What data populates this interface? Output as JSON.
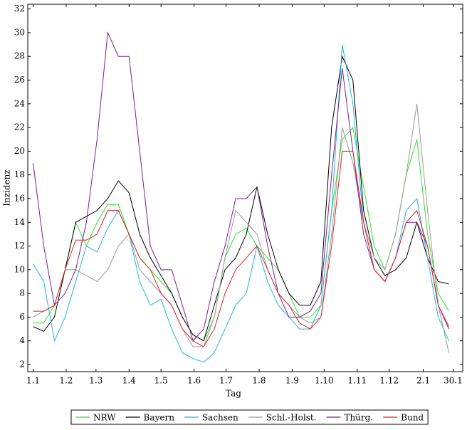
{
  "chart_data": {
    "type": "line",
    "x_label": "Tag",
    "y_label": "Inzidenz",
    "x": [
      0,
      10,
      20,
      30,
      40,
      50,
      60,
      70,
      80,
      90,
      100,
      110,
      120,
      130,
      140,
      150,
      160,
      170,
      180,
      190,
      200,
      210,
      220,
      230,
      240,
      250,
      260,
      270,
      280,
      290,
      300,
      310,
      320,
      330,
      340,
      350,
      360,
      370,
      380,
      390
    ],
    "series": [
      {
        "name": "NRW",
        "color": "#33dd33",
        "values": [
          5.5,
          5.5,
          7,
          10,
          14,
          12,
          14,
          15.5,
          15.5,
          13,
          11,
          10,
          9,
          8,
          6,
          4.5,
          4,
          6,
          11,
          13,
          13.5,
          12,
          11,
          10,
          8,
          6,
          6,
          7,
          15,
          21,
          22,
          17,
          12,
          10,
          13,
          18,
          21,
          13,
          8,
          6.5
        ]
      },
      {
        "name": "Bayern",
        "color": "#000000",
        "values": [
          5.2,
          4.8,
          6,
          10,
          14,
          14.5,
          15,
          16,
          17.5,
          16.5,
          13,
          11,
          9.5,
          8,
          6,
          4.5,
          4,
          7,
          10,
          11,
          13,
          17,
          13,
          10,
          8,
          7,
          7,
          9,
          22,
          28,
          26,
          15,
          11,
          9.5,
          10,
          11,
          14,
          11,
          9,
          8.8
        ]
      },
      {
        "name": "Sachsen",
        "color": "#22b5d6",
        "values": [
          10.5,
          9,
          4,
          6,
          9,
          12,
          11.5,
          13.5,
          15,
          13,
          9,
          7,
          7.5,
          5,
          3,
          2.5,
          2.2,
          3,
          5,
          7,
          8,
          12,
          9,
          7,
          6,
          5,
          5,
          7,
          15,
          29,
          24,
          14,
          10,
          9,
          11,
          15,
          16,
          11,
          6,
          4
        ]
      },
      {
        "name": "Schl.-Holst.",
        "color": "#999999",
        "values": [
          6,
          6.5,
          7,
          10,
          10,
          9.5,
          9,
          10,
          12,
          13,
          10,
          9,
          8,
          7,
          5,
          3.5,
          3.5,
          6,
          11,
          15,
          14,
          13,
          10,
          8,
          7,
          6,
          5.5,
          6,
          13,
          22,
          19,
          14,
          11,
          10,
          13,
          18,
          24,
          15,
          7,
          3
        ]
      },
      {
        "name": "Thürg.",
        "color": "#7a1f8a",
        "values": [
          19,
          12,
          7,
          8,
          10,
          14,
          21,
          30,
          28,
          28,
          20,
          12,
          10,
          10,
          7,
          4,
          5,
          9,
          12,
          16,
          16,
          17,
          12,
          8,
          6,
          6,
          6.5,
          8,
          18,
          27,
          20,
          13,
          10,
          9,
          11,
          14,
          14,
          12,
          7,
          5
        ]
      },
      {
        "name": "Bund",
        "color": "#dd2222",
        "values": [
          6.5,
          6.5,
          7,
          10,
          12.5,
          12.5,
          13,
          15,
          15,
          13,
          11,
          10,
          8,
          7,
          5,
          4,
          3.5,
          5,
          8,
          10,
          11,
          12,
          10,
          8,
          7,
          5.5,
          5,
          6,
          12,
          20,
          20,
          14,
          10,
          9,
          11,
          14,
          15,
          12,
          7,
          5.2
        ]
      }
    ],
    "xlim": [
      -5,
      403
    ],
    "xticks": [
      {
        "value": 0,
        "label": "1.1"
      },
      {
        "value": 31,
        "label": "1.2"
      },
      {
        "value": 59,
        "label": "1.3"
      },
      {
        "value": 90,
        "label": "1.4"
      },
      {
        "value": 120,
        "label": "1.5"
      },
      {
        "value": 151,
        "label": "1.6"
      },
      {
        "value": 181,
        "label": "1.7"
      },
      {
        "value": 212,
        "label": "1.8"
      },
      {
        "value": 243,
        "label": "1.9"
      },
      {
        "value": 273,
        "label": "1.10"
      },
      {
        "value": 304,
        "label": "1.11"
      },
      {
        "value": 334,
        "label": "1.12"
      },
      {
        "value": 366,
        "label": "2.1"
      },
      {
        "value": 394,
        "label": "30.1"
      }
    ],
    "ylim": [
      1.4,
      32.4
    ],
    "yticks": [
      2,
      4,
      6,
      8,
      10,
      12,
      14,
      16,
      18,
      20,
      22,
      24,
      26,
      28,
      30,
      32
    ],
    "legend": "bottom"
  }
}
